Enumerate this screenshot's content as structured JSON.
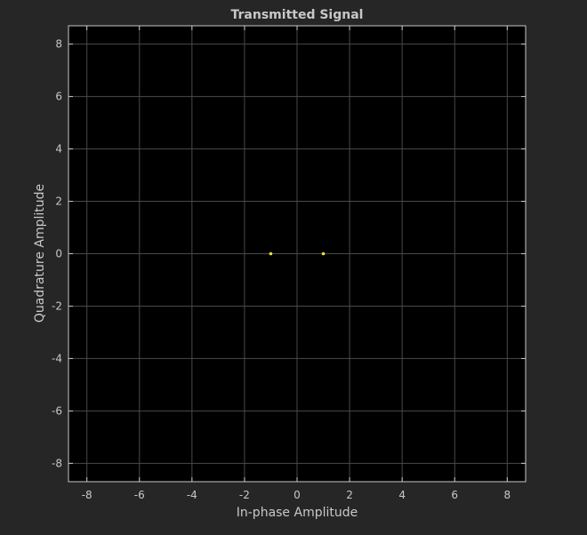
{
  "chart_data": {
    "type": "scatter",
    "title": "Transmitted Signal",
    "xlabel": "In-phase Amplitude",
    "ylabel": "Quadrature Amplitude",
    "xlim": [
      -8.7,
      8.7
    ],
    "ylim": [
      -8.7,
      8.7
    ],
    "xticks": [
      -8,
      -6,
      -4,
      -2,
      0,
      2,
      4,
      6,
      8
    ],
    "yticks": [
      -8,
      -6,
      -4,
      -2,
      0,
      2,
      4,
      6,
      8
    ],
    "grid": true,
    "legend": "none",
    "series": [
      {
        "x": [
          -1,
          1
        ],
        "y": [
          0,
          0
        ]
      }
    ]
  },
  "colors": {
    "figure_background": "#262626",
    "axes_background": "#000000",
    "grid": "#4a4a4a",
    "axis_line": "#c8c8c8",
    "text": "#c8c8c8",
    "marker": "#e5e534"
  }
}
